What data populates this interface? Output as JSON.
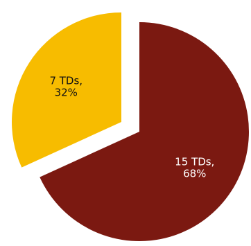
{
  "chart_data": {
    "type": "pie",
    "exploded": true,
    "slices": [
      {
        "value": 15,
        "percent": 68,
        "label_line1": "15 TDs,",
        "label_line2": "68%",
        "color": "#7b1911",
        "label_color": "#ffffff"
      },
      {
        "value": 7,
        "percent": 32,
        "label_line1": "7 TDs,",
        "label_line2": "32%",
        "color": "#f7bc00",
        "label_color": "#111111"
      }
    ]
  }
}
